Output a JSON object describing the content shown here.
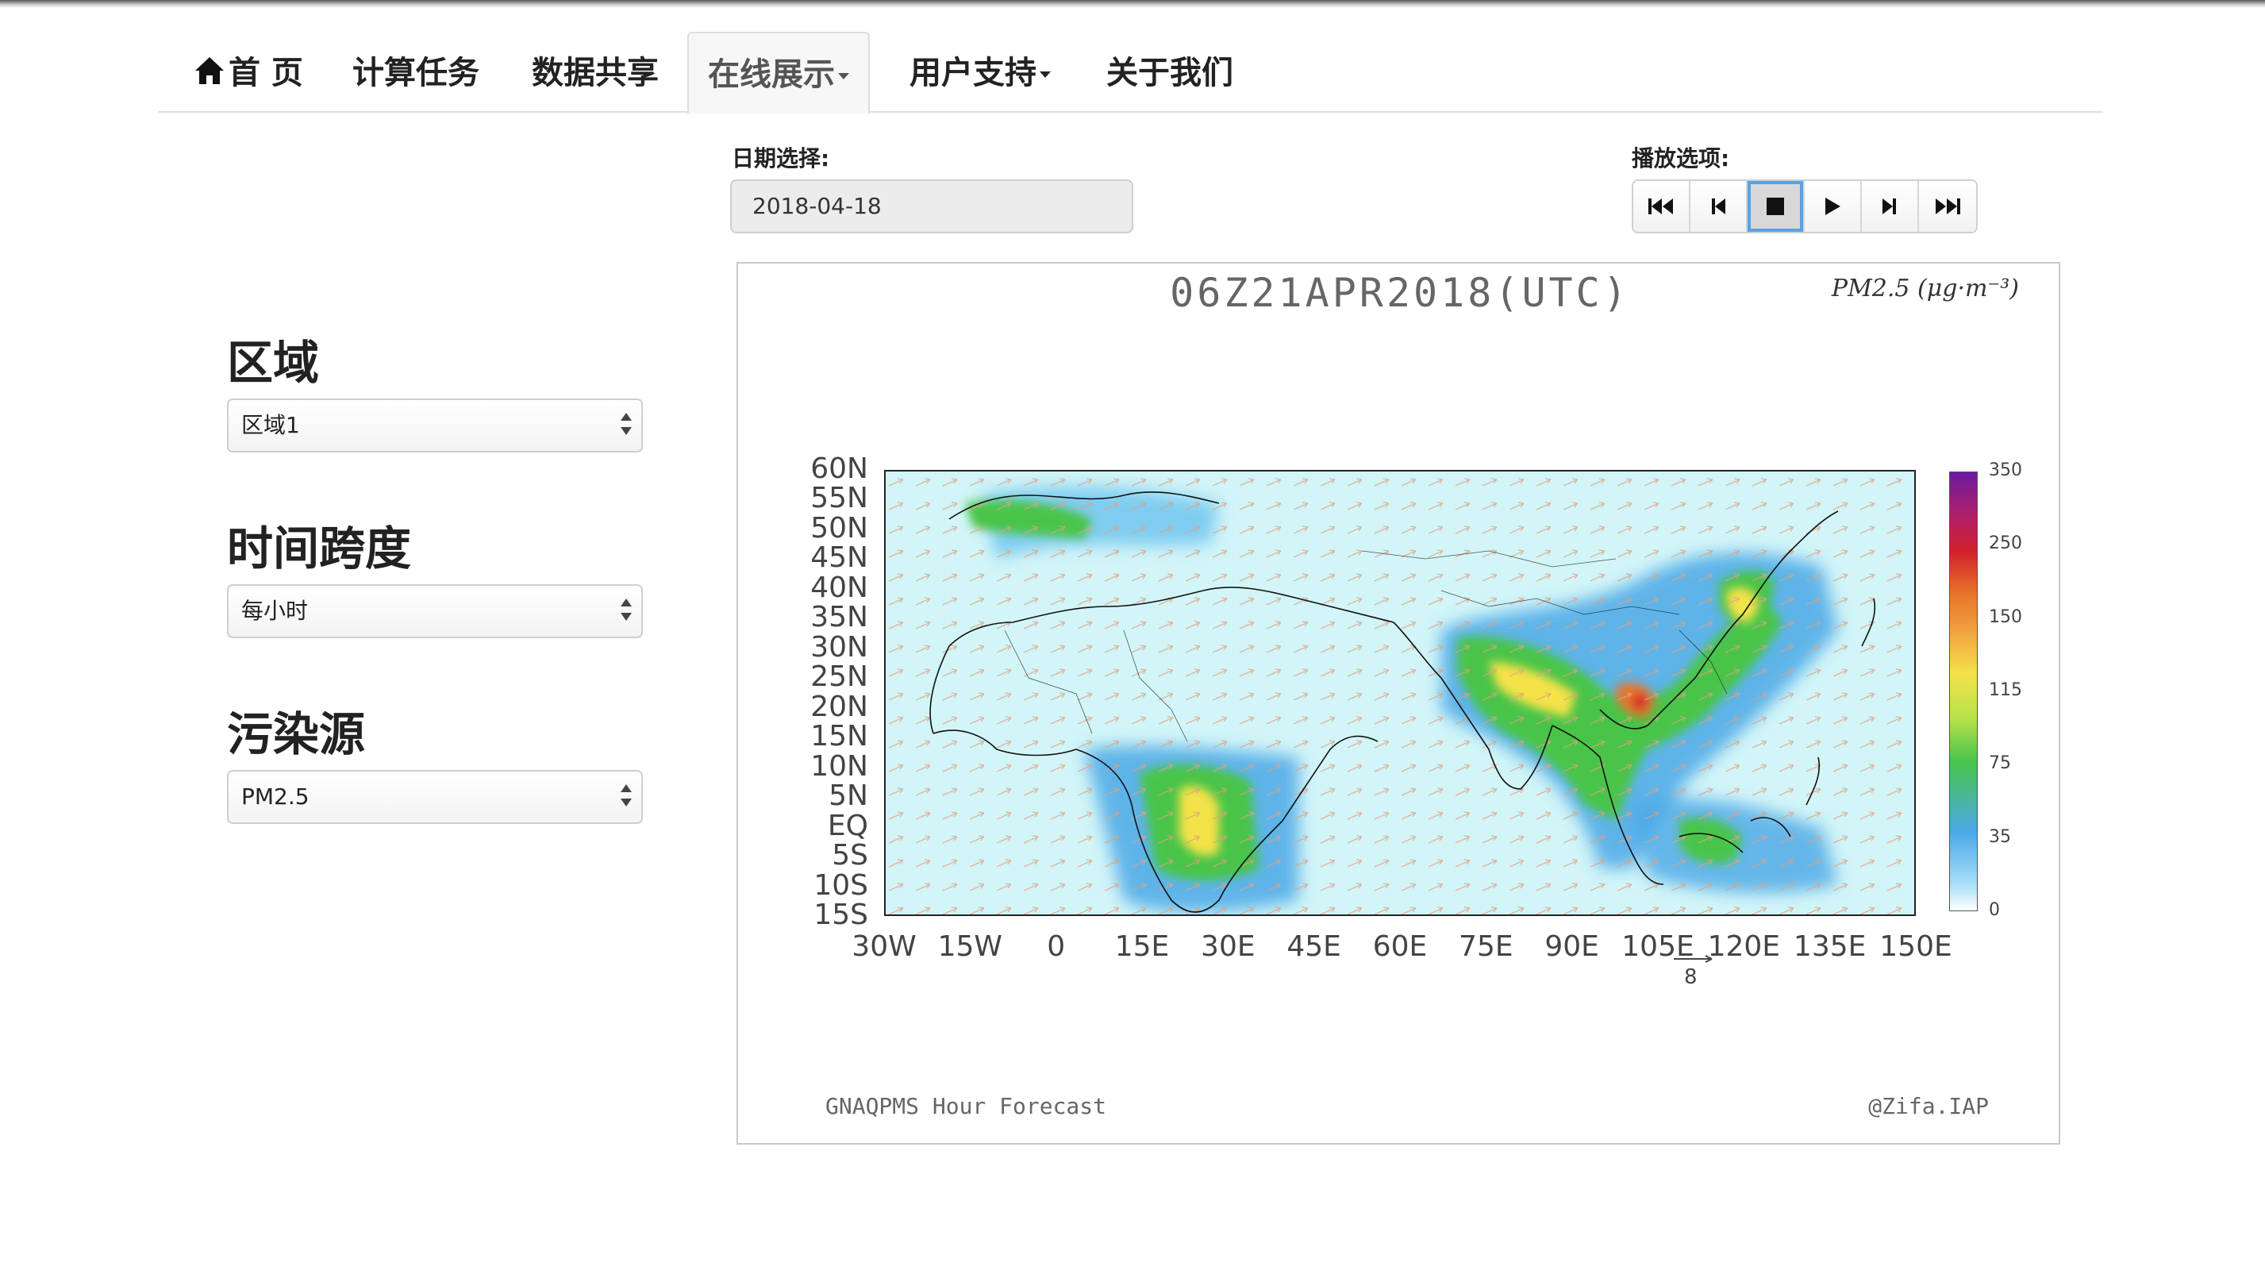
{
  "nav": {
    "items": [
      {
        "label": "首 页",
        "icon": "home-icon",
        "active": false
      },
      {
        "label": "计算任务",
        "active": false
      },
      {
        "label": "数据共享",
        "active": false
      },
      {
        "label": "在线展示",
        "active": true,
        "dropdown": true
      },
      {
        "label": "用户支持",
        "active": false,
        "dropdown": true
      },
      {
        "label": "关于我们",
        "active": false
      }
    ]
  },
  "sidebar": {
    "region_label": "区域",
    "region_value": "区域1",
    "timespan_label": "时间跨度",
    "timespan_value": "每小时",
    "pollutant_label": "污染源",
    "pollutant_value": "PM2.5"
  },
  "date": {
    "label": "日期选择:",
    "value": "2018-04-18"
  },
  "playback": {
    "label": "播放选项:",
    "buttons": [
      "first-icon",
      "previous-icon",
      "stop-icon",
      "play-icon",
      "next-icon",
      "last-icon"
    ],
    "active": "stop-icon"
  },
  "figure": {
    "title": "06Z21APR2018(UTC)",
    "unit": "PM2.5 (μg·m⁻³)",
    "footer_left": "GNAQPMS Hour Forecast",
    "footer_right": "@Zifa.IAP",
    "lat_labels": [
      "60N",
      "55N",
      "50N",
      "45N",
      "40N",
      "35N",
      "30N",
      "25N",
      "20N",
      "15N",
      "10N",
      "5N",
      "EQ",
      "5S",
      "10S",
      "15S"
    ],
    "lon_labels": [
      "30W",
      "15W",
      "0",
      "15E",
      "30E",
      "45E",
      "60E",
      "75E",
      "90E",
      "105E",
      "120E",
      "135E",
      "150E"
    ],
    "colorbar_labels": [
      "350",
      "250",
      "150",
      "115",
      "75",
      "35",
      "0"
    ],
    "vector_ref": "8",
    "colors": {
      "background": "#d2f5f8",
      "low": "#4aa8e6",
      "mid": "#48c44a",
      "high": "#f4e24a",
      "higher": "#e8762a",
      "highest": "#d0202a",
      "extreme": "#6a1aa0",
      "arrows": "#e0a080"
    }
  }
}
